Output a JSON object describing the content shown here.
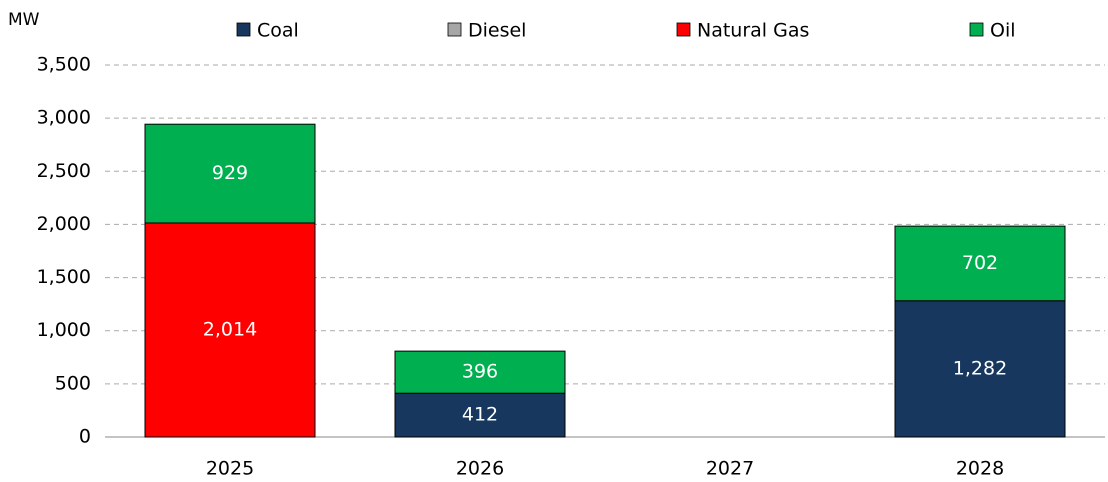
{
  "chart_data": {
    "type": "stacked_bar",
    "y_axis_label": "MW",
    "categories": [
      "2025",
      "2026",
      "2027",
      "2028"
    ],
    "series": [
      {
        "name": "Coal",
        "color": "#17375e",
        "values": [
          0,
          412,
          0,
          1282
        ],
        "value_labels": [
          null,
          "412",
          null,
          "1,282"
        ]
      },
      {
        "name": "Diesel",
        "color": "#a6a6a6",
        "values": [
          0,
          0,
          0,
          0
        ],
        "value_labels": [
          null,
          null,
          null,
          null
        ]
      },
      {
        "name": "Natural Gas",
        "color": "#ff0000",
        "values": [
          2014,
          0,
          0,
          0
        ],
        "value_labels": [
          "2,014",
          null,
          null,
          null
        ]
      },
      {
        "name": "Oil",
        "color": "#00b050",
        "values": [
          929,
          396,
          0,
          702
        ],
        "value_labels": [
          "929",
          "396",
          null,
          "702"
        ]
      }
    ],
    "ylim": [
      0,
      3500
    ],
    "yticks": [
      0,
      500,
      {
        "value": 1000,
        "label": "1,000"
      },
      {
        "value": 1500,
        "label": "1,500"
      },
      {
        "value": 2000,
        "label": "2,000"
      },
      {
        "value": 2500,
        "label": "2,500"
      },
      {
        "value": 3000,
        "label": "3,000"
      },
      {
        "value": 3500,
        "label": "3,500"
      }
    ],
    "grid": true,
    "legend": "top"
  }
}
